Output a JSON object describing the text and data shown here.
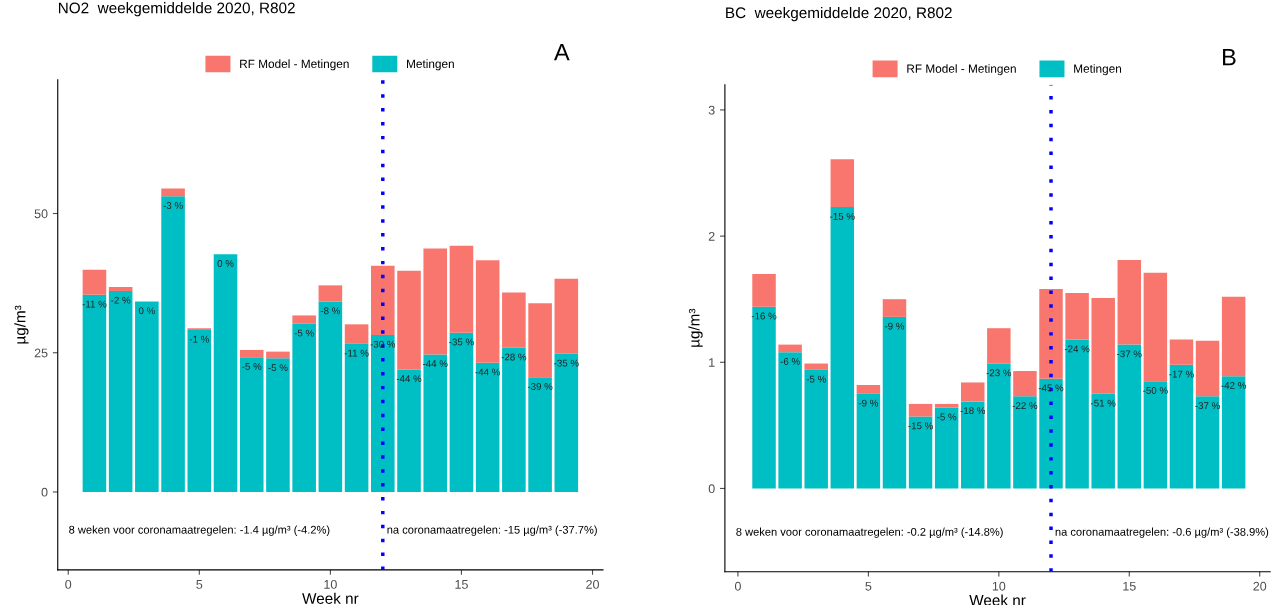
{
  "chart_data": [
    {
      "type": "bar",
      "title": "NO2  weekgemiddelde 2020, R802",
      "xlabel": "Week nr",
      "ylabel": "µg/m³",
      "stacked": true,
      "x": [
        1,
        2,
        3,
        4,
        5,
        6,
        7,
        8,
        9,
        10,
        11,
        12,
        13,
        14,
        15,
        16,
        17,
        18,
        19
      ],
      "series": [
        {
          "name": "Metingen",
          "color": "#00bfc4",
          "values": [
            35.4,
            36.1,
            34.2,
            53.1,
            29.1,
            42.7,
            24.2,
            24.0,
            30.2,
            34.2,
            26.6,
            28.2,
            22.0,
            24.7,
            28.6,
            23.2,
            25.9,
            20.6,
            24.8
          ]
        },
        {
          "name": "RF Model - Metingen",
          "color": "#f8766d",
          "values": [
            4.5,
            0.7,
            0,
            1.4,
            0.3,
            0,
            1.3,
            1.2,
            1.5,
            2.9,
            3.5,
            12.4,
            17.7,
            19.0,
            15.6,
            18.4,
            9.9,
            13.3,
            13.5
          ]
        }
      ],
      "xlim": [
        -0.4,
        20.4
      ],
      "xticks": [
        0,
        5,
        10,
        15,
        20
      ],
      "ylim": [
        -14,
        74
      ],
      "yticks": [
        0,
        25,
        50
      ],
      "ref_lines": [
        {
          "axis": "x",
          "value": 12,
          "color": "#0000ff",
          "line_style": "dotted"
        }
      ],
      "annotations": [
        "8 weken voor coronamaatregelen: -1.4 µg/m³ (-4.2%)",
        "na coronamaatregelen: -15 µg/m³ (-37.7%)",
        "A",
        {
          "text": "-11 %",
          "x": 1,
          "y": 35.4
        },
        {
          "text": "-2 %",
          "x": 2,
          "y": 36.1
        },
        {
          "text": "0 %",
          "x": 3,
          "y": 34.2
        },
        {
          "text": "-3 %",
          "x": 4,
          "y": 53.1
        },
        {
          "text": "-1 %",
          "x": 5,
          "y": 29.1
        },
        {
          "text": "0 %",
          "x": 6,
          "y": 42.7
        },
        {
          "text": "-5 %",
          "x": 7,
          "y": 24.2
        },
        {
          "text": "-5 %",
          "x": 8,
          "y": 24.0
        },
        {
          "text": "-5 %",
          "x": 9,
          "y": 30.2
        },
        {
          "text": "-8 %",
          "x": 10,
          "y": 34.2
        },
        {
          "text": "-11 %",
          "x": 11,
          "y": 26.6
        },
        {
          "text": "-30 %",
          "x": 12,
          "y": 28.2
        },
        {
          "text": "-44 %",
          "x": 13,
          "y": 22.0
        },
        {
          "text": "-44 %",
          "x": 14,
          "y": 24.7
        },
        {
          "text": "-35 %",
          "x": 15,
          "y": 28.6
        },
        {
          "text": "-44 %",
          "x": 16,
          "y": 23.2
        },
        {
          "text": "-28 %",
          "x": 17,
          "y": 25.9
        },
        {
          "text": "-39 %",
          "x": 18,
          "y": 20.6
        },
        {
          "text": "-35 %",
          "x": 19,
          "y": 24.8
        }
      ],
      "legend": "top",
      "grid": false
    },
    {
      "type": "bar",
      "title": "BC  weekgemiddelde 2020, R802",
      "xlabel": "Week nr",
      "ylabel": "µg/m³",
      "stacked": true,
      "x": [
        1,
        2,
        3,
        4,
        5,
        6,
        7,
        8,
        9,
        10,
        11,
        12,
        13,
        14,
        15,
        16,
        17,
        18,
        19
      ],
      "series": [
        {
          "name": "Metingen",
          "color": "#00bfc4",
          "values": [
            1.44,
            1.08,
            0.94,
            2.23,
            0.75,
            1.36,
            0.57,
            0.64,
            0.69,
            0.99,
            0.73,
            0.87,
            1.18,
            0.75,
            1.14,
            0.85,
            0.98,
            0.73,
            0.89
          ]
        },
        {
          "name": "RF Model - Metingen",
          "color": "#f8766d",
          "values": [
            0.26,
            0.06,
            0.05,
            0.38,
            0.07,
            0.14,
            0.1,
            0.03,
            0.15,
            0.28,
            0.2,
            0.71,
            0.37,
            0.76,
            0.67,
            0.86,
            0.2,
            0.44,
            0.63
          ]
        }
      ],
      "xlim": [
        -0.5,
        20.4
      ],
      "xticks": [
        0,
        5,
        10,
        15,
        20
      ],
      "ylim": [
        -0.66,
        3.2
      ],
      "yticks": [
        0,
        1,
        2,
        3
      ],
      "ref_lines": [
        {
          "axis": "x",
          "value": 12,
          "color": "#0000ff",
          "line_style": "dotted"
        }
      ],
      "annotations": [
        "8 weken voor coronamaatregelen: -0.2 µg/m³ (-14.8%)",
        "na coronamaatregelen: -0.6 µg/m³ (-38.9%)",
        "B",
        {
          "text": "-16 %",
          "x": 1,
          "y": 1.44
        },
        {
          "text": "-6 %",
          "x": 2,
          "y": 1.08
        },
        {
          "text": "-5 %",
          "x": 3,
          "y": 0.94
        },
        {
          "text": "-15 %",
          "x": 4,
          "y": 2.23
        },
        {
          "text": "-9 %",
          "x": 5,
          "y": 0.75
        },
        {
          "text": "-9 %",
          "x": 6,
          "y": 1.36
        },
        {
          "text": "-15 %",
          "x": 7,
          "y": 0.57
        },
        {
          "text": "-5 %",
          "x": 8,
          "y": 0.64
        },
        {
          "text": "-18 %",
          "x": 9,
          "y": 0.69
        },
        {
          "text": "-23 %",
          "x": 10,
          "y": 0.99
        },
        {
          "text": "-22 %",
          "x": 11,
          "y": 0.73
        },
        {
          "text": "-45 %",
          "x": 12,
          "y": 0.87
        },
        {
          "text": "-24 %",
          "x": 13,
          "y": 1.18
        },
        {
          "text": "-51 %",
          "x": 14,
          "y": 0.75
        },
        {
          "text": "-37 %",
          "x": 15,
          "y": 1.14
        },
        {
          "text": "-50 %",
          "x": 16,
          "y": 0.85
        },
        {
          "text": "-17 %",
          "x": 17,
          "y": 0.98
        },
        {
          "text": "-37 %",
          "x": 18,
          "y": 0.73
        },
        {
          "text": "-42 %",
          "x": 19,
          "y": 0.89
        }
      ],
      "legend": "top",
      "grid": false
    }
  ]
}
